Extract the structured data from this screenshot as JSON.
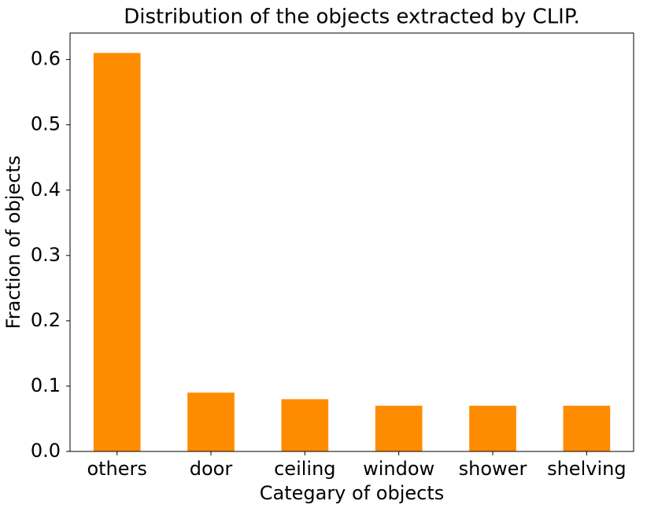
{
  "chart_data": {
    "type": "bar",
    "title": "Distribution of the objects extracted by CLIP.",
    "x_label": "Categary of objects",
    "y_label": "Fraction of objects",
    "categories": [
      "others",
      "door",
      "ceiling",
      "window",
      "shower",
      "shelving"
    ],
    "values": [
      0.61,
      0.09,
      0.08,
      0.07,
      0.07,
      0.07
    ],
    "color": "#ff8c00",
    "ylim": [
      0,
      0.6405
    ],
    "yticks": [
      {
        "value": 0,
        "label": "0.0"
      },
      0.1,
      0.2,
      0.3,
      0.4,
      0.5,
      0.6
    ],
    "grid": false
  }
}
